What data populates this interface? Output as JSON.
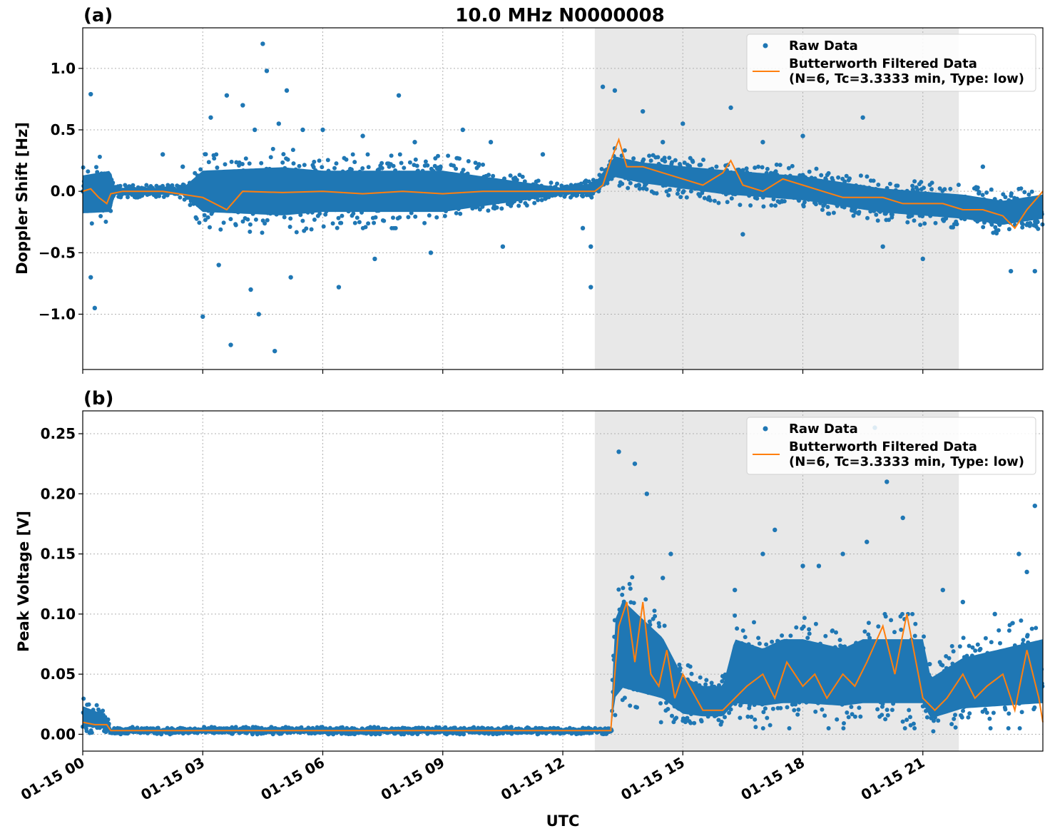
{
  "chart_data": [
    {
      "type": "scatter",
      "panel_label": "(a)",
      "title": "10.0 MHz N0000008",
      "xlabel": "",
      "ylabel": "Doppler Shift [Hz]",
      "xlim": [
        "01-15 00:00",
        "01-15 24:00"
      ],
      "ylim": [
        -1.45,
        1.33
      ],
      "yticks": [
        -1.0,
        -0.5,
        0.0,
        0.5,
        1.0
      ],
      "ytick_labels": [
        "−1.0",
        "−0.5",
        "0.0",
        "0.5",
        "1.0"
      ],
      "xtick_hours": [
        0,
        3,
        6,
        9,
        12,
        15,
        18,
        21
      ],
      "grid": true,
      "legend_position": "top-right",
      "shaded_region_hours": [
        12.8,
        21.9
      ],
      "shaded_color": "#e8e8e8",
      "series": [
        {
          "name": "Raw Data",
          "style": "points",
          "color": "#1f77b4",
          "hours": [
            0.0,
            0.1,
            0.2,
            0.3,
            0.4,
            0.5,
            0.6,
            0.7,
            1.0,
            1.5,
            2.0,
            2.5,
            3.0,
            3.5,
            4.0,
            4.5,
            5.0,
            6.0,
            7.0,
            8.0,
            9.0,
            10.0,
            11.0,
            12.0,
            12.5,
            13.0,
            13.3,
            13.5,
            14.0,
            14.5,
            15.0,
            15.5,
            16.0,
            16.5,
            17.0,
            17.5,
            18.0,
            18.5,
            19.0,
            19.5,
            20.0,
            20.5,
            21.0,
            21.5,
            22.0,
            22.5,
            23.0,
            23.5,
            24.0
          ],
          "values": [
            0.0,
            0.05,
            -0.02,
            0.03,
            -0.05,
            0.02,
            0.0,
            -0.01,
            0.0,
            0.0,
            0.0,
            0.0,
            0.0,
            -0.02,
            0.01,
            0.0,
            -0.01,
            0.0,
            0.0,
            -0.01,
            0.0,
            0.0,
            0.0,
            0.0,
            0.0,
            0.0,
            0.3,
            0.2,
            0.18,
            0.12,
            0.1,
            0.05,
            0.1,
            0.05,
            0.0,
            0.05,
            0.0,
            -0.05,
            -0.05,
            -0.05,
            -0.08,
            -0.1,
            -0.1,
            -0.12,
            -0.15,
            -0.15,
            -0.18,
            -0.2,
            -0.1
          ],
          "band_hours": [
            0.0,
            0.7,
            0.8,
            2.5,
            3.0,
            5.0,
            6.0,
            9.0,
            12.0,
            12.8,
            13.3,
            14.0,
            16.0,
            18.0,
            20.0,
            22.0,
            23.0,
            24.0
          ],
          "band_low": [
            -0.3,
            -0.3,
            -0.05,
            -0.05,
            -0.3,
            -0.35,
            -0.3,
            -0.3,
            -0.05,
            -0.05,
            0.05,
            0.0,
            -0.1,
            -0.15,
            -0.25,
            -0.3,
            -0.35,
            -0.3
          ],
          "band_high": [
            0.25,
            0.3,
            0.05,
            0.05,
            0.3,
            0.35,
            0.3,
            0.3,
            0.05,
            0.1,
            0.35,
            0.3,
            0.25,
            0.2,
            0.1,
            0.05,
            0.0,
            0.05
          ],
          "outliers": [
            [
              0.2,
              0.79
            ],
            [
              0.3,
              -0.95
            ],
            [
              0.2,
              -0.7
            ],
            [
              2.0,
              0.3
            ],
            [
              2.5,
              0.2
            ],
            [
              3.0,
              -1.02
            ],
            [
              3.2,
              0.6
            ],
            [
              3.4,
              -0.6
            ],
            [
              3.6,
              0.78
            ],
            [
              3.7,
              -1.25
            ],
            [
              4.0,
              0.7
            ],
            [
              4.2,
              -0.8
            ],
            [
              4.3,
              0.5
            ],
            [
              4.4,
              -1.0
            ],
            [
              4.5,
              1.2
            ],
            [
              4.6,
              0.98
            ],
            [
              4.8,
              -1.3
            ],
            [
              4.9,
              0.55
            ],
            [
              5.1,
              0.82
            ],
            [
              5.2,
              -0.7
            ],
            [
              5.5,
              0.5
            ],
            [
              6.0,
              0.5
            ],
            [
              6.4,
              -0.78
            ],
            [
              7.0,
              0.45
            ],
            [
              7.3,
              -0.55
            ],
            [
              7.9,
              0.78
            ],
            [
              8.3,
              0.4
            ],
            [
              8.7,
              -0.5
            ],
            [
              9.5,
              0.5
            ],
            [
              10.2,
              0.4
            ],
            [
              10.5,
              -0.45
            ],
            [
              11.5,
              0.3
            ],
            [
              12.5,
              -0.3
            ],
            [
              12.7,
              -0.45
            ],
            [
              12.7,
              -0.78
            ],
            [
              13.0,
              0.85
            ],
            [
              13.3,
              0.82
            ],
            [
              14.0,
              0.65
            ],
            [
              14.5,
              0.4
            ],
            [
              15.0,
              0.55
            ],
            [
              16.2,
              0.68
            ],
            [
              16.5,
              -0.35
            ],
            [
              17.0,
              0.4
            ],
            [
              18.0,
              0.45
            ],
            [
              19.5,
              0.6
            ],
            [
              20.0,
              -0.45
            ],
            [
              21.0,
              -0.55
            ],
            [
              22.5,
              0.2
            ],
            [
              23.2,
              -0.65
            ],
            [
              23.8,
              -0.65
            ]
          ]
        },
        {
          "name": "Butterworth Filtered Data\n(N=6, Tc=3.3333 min, Type: low)",
          "style": "line",
          "color": "#ff7f0e",
          "hours": [
            0.0,
            0.2,
            0.4,
            0.6,
            0.7,
            1.0,
            2.0,
            3.0,
            3.6,
            4.0,
            5.0,
            6.0,
            7.0,
            8.0,
            9.0,
            10.0,
            11.0,
            12.0,
            12.8,
            13.0,
            13.2,
            13.4,
            13.6,
            14.0,
            14.5,
            15.0,
            15.5,
            16.0,
            16.2,
            16.5,
            17.0,
            17.5,
            18.0,
            18.5,
            19.0,
            19.5,
            20.0,
            20.5,
            21.0,
            21.5,
            22.0,
            22.5,
            23.0,
            23.3,
            23.6,
            24.0
          ],
          "values": [
            0.0,
            0.02,
            -0.05,
            -0.1,
            -0.02,
            0.0,
            0.0,
            -0.05,
            -0.15,
            0.0,
            -0.01,
            0.0,
            -0.02,
            0.0,
            -0.02,
            0.0,
            0.0,
            0.0,
            0.0,
            0.05,
            0.25,
            0.42,
            0.2,
            0.2,
            0.15,
            0.1,
            0.05,
            0.15,
            0.25,
            0.05,
            0.0,
            0.1,
            0.05,
            0.0,
            -0.05,
            -0.05,
            -0.05,
            -0.1,
            -0.1,
            -0.1,
            -0.15,
            -0.15,
            -0.2,
            -0.3,
            -0.15,
            0.0
          ]
        }
      ]
    },
    {
      "type": "scatter",
      "panel_label": "(b)",
      "title": "",
      "xlabel": "UTC",
      "ylabel": "Peak Voltage [V]",
      "xlim": [
        "01-15 00:00",
        "01-15 24:00"
      ],
      "ylim": [
        -0.014,
        0.269
      ],
      "yticks": [
        0.0,
        0.05,
        0.1,
        0.15,
        0.2,
        0.25
      ],
      "ytick_labels": [
        "0.00",
        "0.05",
        "0.10",
        "0.15",
        "0.20",
        "0.25"
      ],
      "xtick_hours": [
        0,
        3,
        6,
        9,
        12,
        15,
        18,
        21
      ],
      "xtick_labels": [
        "01-15 00",
        "01-15 03",
        "01-15 06",
        "01-15 09",
        "01-15 12",
        "01-15 15",
        "01-15 18",
        "01-15 21"
      ],
      "grid": true,
      "legend_position": "top-right",
      "shaded_region_hours": [
        12.8,
        21.9
      ],
      "shaded_color": "#e8e8e8",
      "series": [
        {
          "name": "Raw Data",
          "style": "points",
          "color": "#1f77b4",
          "band_hours": [
            0.0,
            0.6,
            0.7,
            13.2,
            13.3,
            13.5,
            14.0,
            14.5,
            15.0,
            15.5,
            16.0,
            16.3,
            17.0,
            17.5,
            18.0,
            19.0,
            19.5,
            20.0,
            20.5,
            21.0,
            21.2,
            22.0,
            23.0,
            24.0
          ],
          "band_low": [
            0.0,
            0.0,
            0.0,
            0.0,
            0.005,
            0.01,
            0.01,
            0.01,
            0.005,
            0.005,
            0.005,
            0.005,
            0.005,
            0.005,
            0.005,
            0.005,
            0.005,
            0.005,
            0.005,
            0.005,
            0.0,
            0.005,
            0.005,
            0.005
          ],
          "band_high": [
            0.03,
            0.02,
            0.006,
            0.006,
            0.12,
            0.14,
            0.12,
            0.1,
            0.06,
            0.05,
            0.05,
            0.1,
            0.09,
            0.1,
            0.1,
            0.09,
            0.1,
            0.1,
            0.1,
            0.1,
            0.06,
            0.08,
            0.09,
            0.1
          ],
          "outliers": [
            [
              13.4,
              0.235
            ],
            [
              13.8,
              0.225
            ],
            [
              14.1,
              0.2
            ],
            [
              14.5,
              0.13
            ],
            [
              14.7,
              0.15
            ],
            [
              16.3,
              0.12
            ],
            [
              17.0,
              0.15
            ],
            [
              17.3,
              0.17
            ],
            [
              18.0,
              0.14
            ],
            [
              18.4,
              0.14
            ],
            [
              19.0,
              0.15
            ],
            [
              19.6,
              0.16
            ],
            [
              19.8,
              0.255
            ],
            [
              20.1,
              0.21
            ],
            [
              20.5,
              0.18
            ],
            [
              21.5,
              0.12
            ],
            [
              22.0,
              0.11
            ],
            [
              22.8,
              0.1
            ],
            [
              23.4,
              0.15
            ],
            [
              23.6,
              0.135
            ],
            [
              23.8,
              0.19
            ]
          ]
        },
        {
          "name": "Butterworth Filtered Data\n(N=6, Tc=3.3333 min, Type: low)",
          "style": "line",
          "color": "#ff7f0e",
          "hours": [
            0.0,
            0.3,
            0.6,
            0.7,
            3.0,
            6.0,
            9.0,
            12.0,
            13.2,
            13.3,
            13.4,
            13.6,
            13.8,
            14.0,
            14.2,
            14.4,
            14.6,
            14.8,
            15.0,
            15.5,
            16.0,
            16.3,
            16.6,
            17.0,
            17.3,
            17.6,
            18.0,
            18.3,
            18.6,
            19.0,
            19.3,
            19.6,
            20.0,
            20.3,
            20.6,
            21.0,
            21.3,
            21.6,
            22.0,
            22.3,
            22.6,
            23.0,
            23.3,
            23.6,
            23.9,
            24.0
          ],
          "values": [
            0.01,
            0.008,
            0.008,
            0.003,
            0.003,
            0.003,
            0.003,
            0.003,
            0.003,
            0.05,
            0.09,
            0.11,
            0.06,
            0.11,
            0.05,
            0.04,
            0.07,
            0.03,
            0.05,
            0.02,
            0.02,
            0.03,
            0.04,
            0.05,
            0.03,
            0.06,
            0.04,
            0.05,
            0.03,
            0.05,
            0.04,
            0.06,
            0.09,
            0.05,
            0.1,
            0.03,
            0.02,
            0.03,
            0.05,
            0.03,
            0.04,
            0.05,
            0.02,
            0.07,
            0.03,
            0.01
          ]
        }
      ]
    }
  ]
}
